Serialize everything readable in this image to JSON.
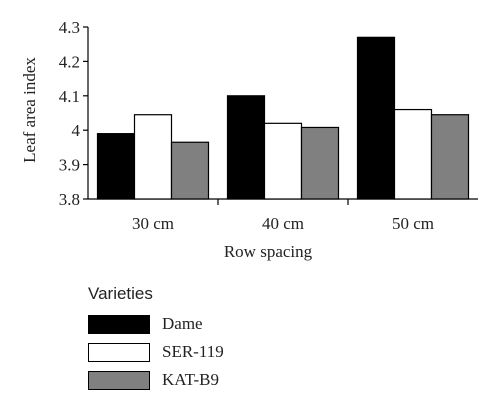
{
  "chart_data": {
    "type": "bar",
    "title": "",
    "xlabel": "Row spacing",
    "ylabel": "Leaf area index",
    "categories": [
      "30 cm",
      "40 cm",
      "50 cm"
    ],
    "ylim": [
      3.8,
      4.3
    ],
    "yticks": [
      "3.8",
      "3.9",
      "4",
      "4.1",
      "4.2",
      "4.3"
    ],
    "grid": false,
    "legend_title": "Varieties",
    "legend_position": "bottom-left",
    "series": [
      {
        "name": "Dame",
        "color": "#000000",
        "values": [
          3.99,
          4.1,
          4.27
        ]
      },
      {
        "name": "SER-119",
        "color": "#ffffff",
        "values": [
          4.045,
          4.02,
          4.06
        ]
      },
      {
        "name": "KAT-B9",
        "color": "#808080",
        "values": [
          3.965,
          4.008,
          4.045
        ]
      }
    ]
  }
}
